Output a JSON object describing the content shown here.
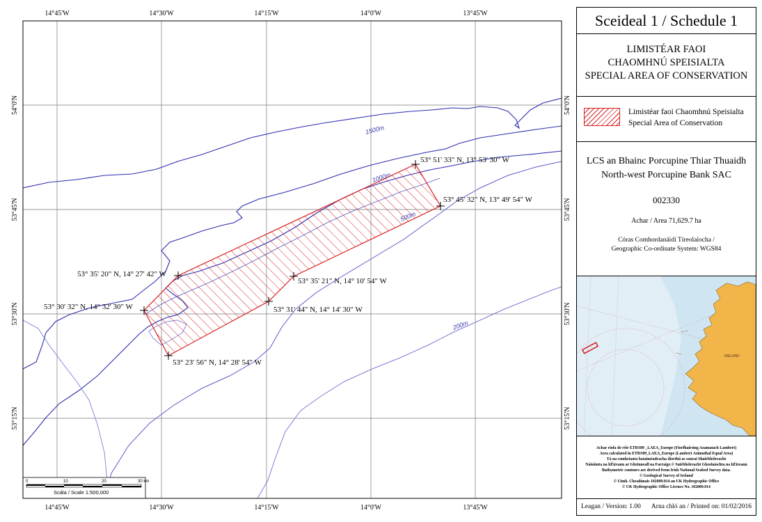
{
  "map": {
    "top_lon_labels": [
      "14°45'W",
      "14°30'W",
      "14°15'W",
      "14°0'W",
      "13°45'W"
    ],
    "bottom_lon_labels": [
      "14°45'W",
      "14°30'W",
      "14°15'W",
      "14°0'W",
      "13°45'W"
    ],
    "left_lat_labels": [
      "54°0'N",
      "53°45'N",
      "53°30'N",
      "53°15'N"
    ],
    "right_lat_labels": [
      "54°0'N",
      "53°45'N",
      "53°30'N",
      "53°15'N"
    ],
    "contour_labels": {
      "c1500": "1500m",
      "c1000": "1000m",
      "c500": "500m",
      "c200": "200m"
    },
    "vertex_labels": [
      "53° 51' 33\" N, 13° 53' 30\" W",
      "53° 45' 32\" N, 13° 49' 54\" W",
      "53° 35' 21\" N, 14° 10' 54\" W",
      "53° 31' 44\" N, 14° 14' 30\" W",
      "53° 23' 56\" N, 14° 28' 54\" W",
      "53° 30' 32\" N, 14° 32' 30\" W",
      "53° 35' 20\" N, 14° 27' 42\" W"
    ],
    "scale_bar": {
      "ticks": [
        "0",
        "10",
        "20",
        "30 km"
      ],
      "caption": "Scála / Scale 1:500,000"
    },
    "colors": {
      "contour": "#2b2bb0",
      "contour_light": "#7c7cd6",
      "sac": "#d62020"
    }
  },
  "panel": {
    "title": "Sceideal 1 / Schedule 1",
    "sac_heading": [
      "LIMISTÉAR FAOI",
      "CHAOMHNÚ SPEISIALTA",
      "SPECIAL AREA OF CONSERVATION"
    ],
    "legend": [
      "Limistéar faoi Chaomhnú Speisialta",
      "Special Area of Conservation"
    ],
    "site_name_ga": "LCS an Bhainc Porcupine Thiar Thuaidh",
    "site_name_en": "North-west Porcupine Bank SAC",
    "site_code": "002330",
    "area": "Achar / Area 71,629.7 ha",
    "coord_system": [
      "Córas Comhordanáidí Tíreolaíocha /",
      "Geographic Co-ordinate System: WGS84"
    ],
    "inset_label": "IRELAND",
    "credits": [
      "Achar ríofa de réir ETRS89 _LAEA_Europe (Fiorfhairsing Azamatach Lambert)",
      "Area calculated in ETRS89_LAEA_Europe (Lambert Azimuthal Equal Area)",
      "Tá na comhrianta bataiméadracha díorthú as sonraí Shuirbhéireacht",
      "Náisiúnta na hÉireann ar Ghrinneall na Farraige.© Suirbhéireacht Gheolaíochta na hÉireann",
      "Bathymetric contours are derived from Irish National Seabed Survey data.",
      "© Geological Survey of Ireland",
      "© Uimh. Cheadúnais 102009.014 an UK Hydrographic Office",
      "© UK Hydrographic Office Licence No. 102009.014"
    ],
    "version": "Leagan / Version: 1.00",
    "printed": "Arna chló an / Printed on: 01/02/2016"
  }
}
